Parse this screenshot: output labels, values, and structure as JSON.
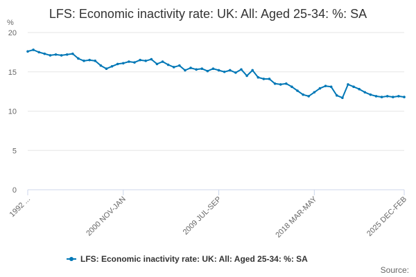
{
  "chart_data": {
    "type": "line",
    "title": "LFS: Economic inactivity rate: UK: All: Aged 25-34: %: SA",
    "ylabel": "%",
    "ylim": [
      0,
      20
    ],
    "yticks": [
      0,
      5,
      10,
      15,
      20
    ],
    "x_start": "1992 ...",
    "x_end": "2025 DEC-FEB",
    "x_tick_labels": [
      "1992 ...",
      "2000 NOV-JAN",
      "2009 JUL-SEP",
      "2018 MAR-MAY",
      "2025 DEC-FEB"
    ],
    "x_tick_positions": [
      0,
      8.5,
      17,
      25.5,
      33.5
    ],
    "grid": true,
    "legend_position": "bottom",
    "series": [
      {
        "name": "LFS: Economic inactivity rate: UK: All: Aged 25-34: %: SA",
        "color": "#0077b6",
        "x": [
          0,
          0.5,
          1,
          1.5,
          2,
          2.5,
          3,
          3.5,
          4,
          4.5,
          5,
          5.5,
          6,
          6.5,
          7,
          7.5,
          8,
          8.5,
          9,
          9.5,
          10,
          10.5,
          11,
          11.5,
          12,
          12.5,
          13,
          13.5,
          14,
          14.5,
          15,
          15.5,
          16,
          16.5,
          17,
          17.5,
          18,
          18.5,
          19,
          19.5,
          20,
          20.5,
          21,
          21.5,
          22,
          22.5,
          23,
          23.5,
          24,
          24.5,
          25,
          25.5,
          26,
          26.5,
          27,
          27.5,
          28,
          28.5,
          29,
          29.5,
          30,
          30.5,
          31,
          31.5,
          32,
          32.5,
          33,
          33.5
        ],
        "values": [
          17.6,
          17.8,
          17.5,
          17.3,
          17.1,
          17.2,
          17.1,
          17.2,
          17.3,
          16.7,
          16.4,
          16.5,
          16.4,
          15.8,
          15.4,
          15.7,
          16.0,
          16.1,
          16.3,
          16.2,
          16.5,
          16.4,
          16.6,
          16.0,
          16.3,
          15.9,
          15.6,
          15.8,
          15.2,
          15.5,
          15.3,
          15.4,
          15.1,
          15.4,
          15.2,
          15.0,
          15.2,
          14.9,
          15.3,
          14.5,
          15.2,
          14.3,
          14.1,
          14.1,
          13.5,
          13.4,
          13.5,
          13.1,
          12.6,
          12.1,
          11.9,
          12.4,
          12.9,
          13.2,
          13.1,
          12.0,
          11.7,
          13.4,
          13.1,
          12.8,
          12.4,
          12.1,
          11.9,
          11.8,
          11.9,
          11.8,
          11.9,
          11.8
        ]
      }
    ]
  },
  "footer": {
    "source_label": "Source:"
  }
}
